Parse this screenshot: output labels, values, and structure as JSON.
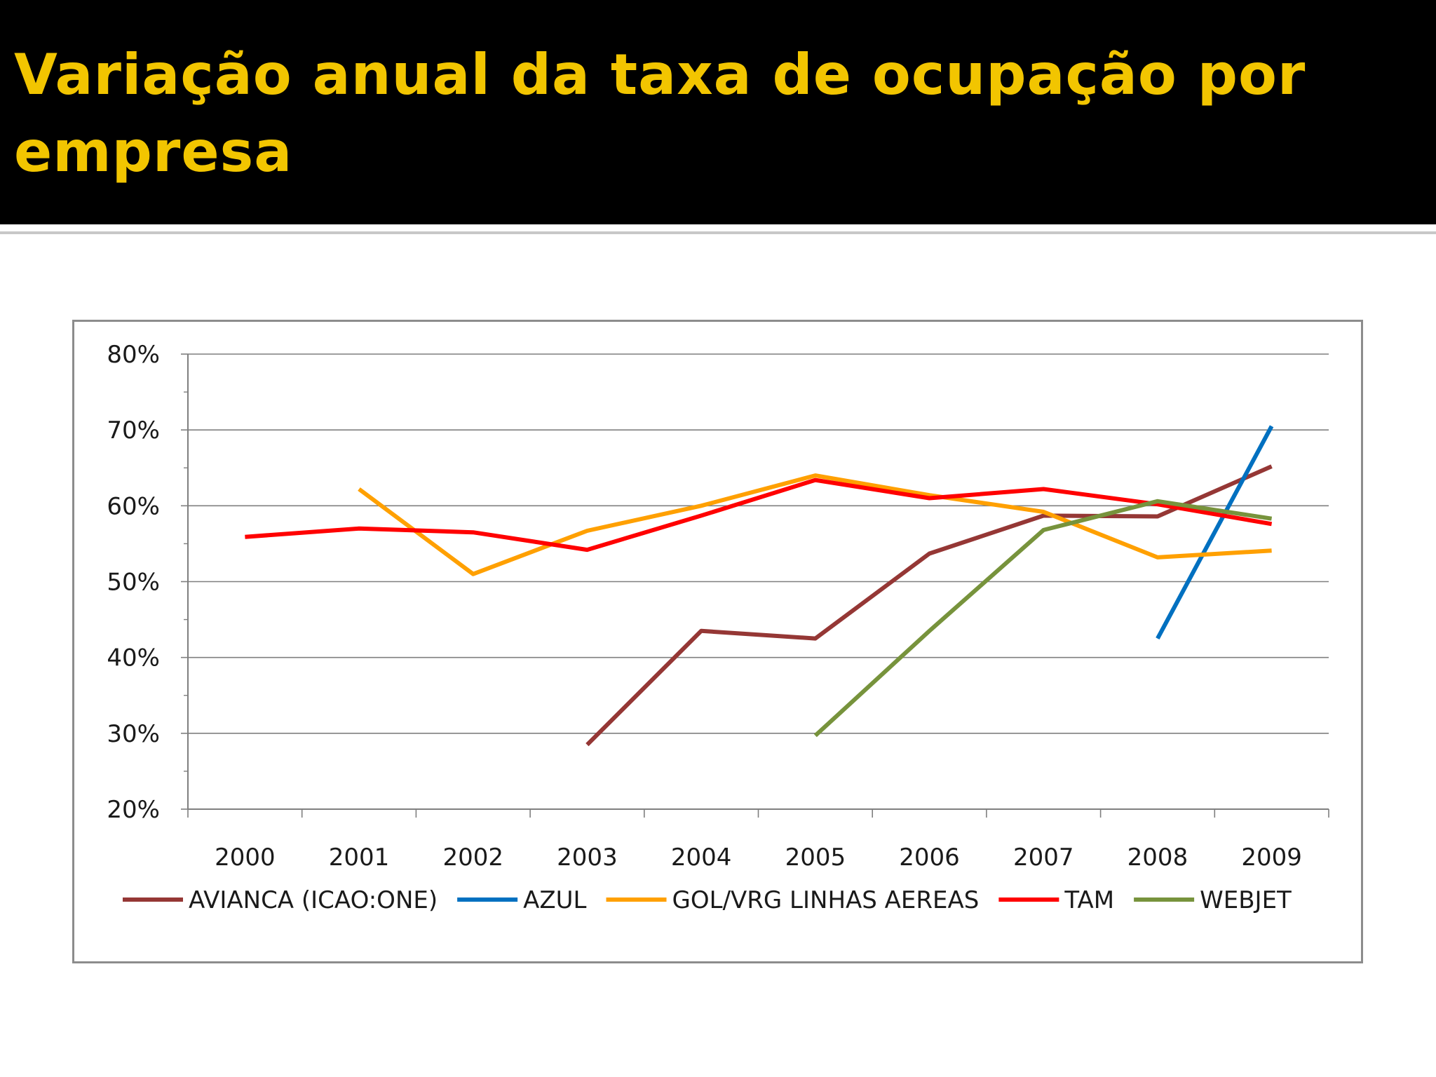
{
  "header": {
    "title": "Variação anual da taxa de ocupação por empresa"
  },
  "colors": {
    "title_bg": "#000000",
    "title_text": "#f2c500"
  },
  "chart_data": {
    "type": "line",
    "title": "",
    "xlabel": "",
    "ylabel": "",
    "categories": [
      "2000",
      "2001",
      "2002",
      "2003",
      "2004",
      "2005",
      "2006",
      "2007",
      "2008",
      "2009"
    ],
    "ylim": [
      0.2,
      0.8
    ],
    "yticks": [
      "20%",
      "30%",
      "40%",
      "50%",
      "60%",
      "70%",
      "80%"
    ],
    "grid": true,
    "legend_position": "bottom",
    "series": [
      {
        "name": "AVIANCA (ICAO:ONE)",
        "color": "#953735",
        "values": [
          null,
          null,
          null,
          0.285,
          0.435,
          0.425,
          0.537,
          0.587,
          0.586,
          0.652
        ]
      },
      {
        "name": "AZUL",
        "color": "#0070c0",
        "values": [
          null,
          null,
          null,
          null,
          null,
          null,
          null,
          null,
          0.425,
          0.705
        ]
      },
      {
        "name": "GOL/VRG LINHAS AEREAS",
        "color": "#ffa000",
        "values": [
          null,
          0.622,
          0.51,
          0.567,
          0.6,
          0.64,
          0.614,
          0.592,
          0.532,
          0.541
        ]
      },
      {
        "name": "TAM",
        "color": "#ff0000",
        "values": [
          0.559,
          0.57,
          0.565,
          0.542,
          0.587,
          0.634,
          0.61,
          0.622,
          0.602,
          0.576
        ]
      },
      {
        "name": "WEBJET",
        "color": "#77933c",
        "values": [
          null,
          null,
          null,
          null,
          null,
          0.297,
          0.435,
          0.568,
          0.606,
          0.583
        ]
      }
    ]
  }
}
